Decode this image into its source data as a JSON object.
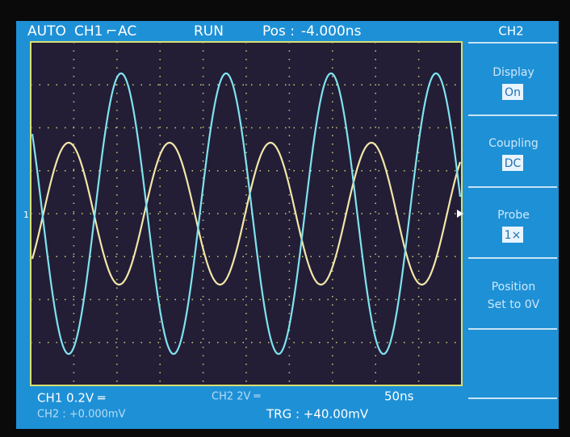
{
  "top_bar": {
    "mode": "AUTO",
    "channel": "CH1",
    "trigger_edge": "⌐",
    "coupling": "AC",
    "state": "RUN",
    "position_label": "Pos :",
    "position_value": "-4.000ns"
  },
  "menu": {
    "title": "CH2",
    "items": [
      {
        "label": "Display",
        "value": "On"
      },
      {
        "label": "Coupling",
        "value": "DC"
      },
      {
        "label": "Probe",
        "value": "1×"
      },
      {
        "label": "Position",
        "value": "Set to 0V"
      }
    ]
  },
  "markers": {
    "ch1": "1"
  },
  "bottom_bar": {
    "ch1_scale": "CH1  0.2V ═",
    "ch2_scale": "CH2  2V ═",
    "timebase": "50ns",
    "ch2_offset": "CH2 : +0.000mV",
    "trigger": "TRG : +40.00mV"
  }
}
